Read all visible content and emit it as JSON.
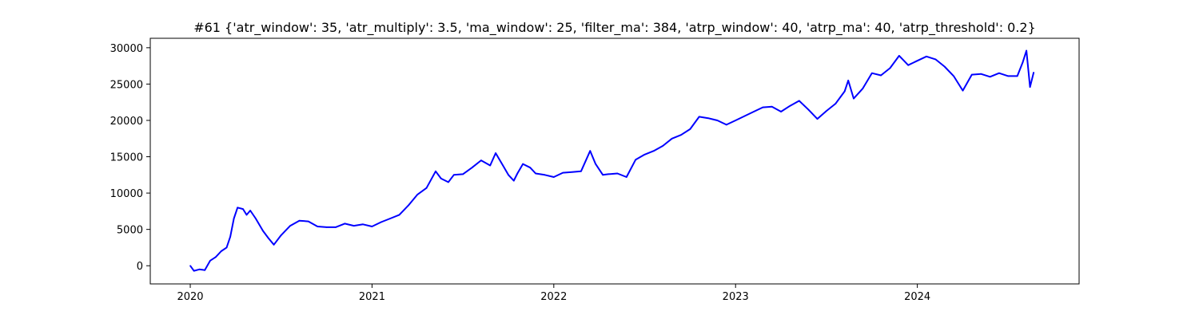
{
  "chart_data": {
    "type": "line",
    "title": "#61 {'atr_window': 35, 'atr_multiply': 3.5, 'ma_window': 25, 'filter_ma': 384, 'atrp_window': 40, 'atrp_ma': 40, 'atrp_threshold': 0.2}",
    "xlabel": "",
    "ylabel": "",
    "xlim": [
      2019.78,
      2024.89
    ],
    "ylim": [
      -2500,
      31300
    ],
    "x_ticks": [
      2020,
      2021,
      2022,
      2023,
      2024
    ],
    "x_tick_labels": [
      "2020",
      "2021",
      "2022",
      "2023",
      "2024"
    ],
    "y_ticks": [
      0,
      5000,
      10000,
      15000,
      20000,
      25000,
      30000
    ],
    "y_tick_labels": [
      "0",
      "5000",
      "10000",
      "15000",
      "20000",
      "25000",
      "30000"
    ],
    "grid": false,
    "series": [
      {
        "color": "#0000ff",
        "x": [
          2020.0,
          2020.02,
          2020.05,
          2020.08,
          2020.11,
          2020.14,
          2020.17,
          2020.2,
          2020.22,
          2020.24,
          2020.26,
          2020.29,
          2020.31,
          2020.33,
          2020.36,
          2020.4,
          2020.43,
          2020.46,
          2020.5,
          2020.55,
          2020.6,
          2020.65,
          2020.7,
          2020.75,
          2020.8,
          2020.85,
          2020.9,
          2020.95,
          2021.0,
          2021.05,
          2021.1,
          2021.15,
          2021.2,
          2021.25,
          2021.3,
          2021.35,
          2021.38,
          2021.42,
          2021.45,
          2021.5,
          2021.55,
          2021.6,
          2021.65,
          2021.68,
          2021.72,
          2021.75,
          2021.78,
          2021.8,
          2021.83,
          2021.87,
          2021.9,
          2021.95,
          2022.0,
          2022.05,
          2022.1,
          2022.15,
          2022.2,
          2022.23,
          2022.27,
          2022.3,
          2022.35,
          2022.4,
          2022.45,
          2022.5,
          2022.55,
          2022.6,
          2022.65,
          2022.7,
          2022.75,
          2022.8,
          2022.85,
          2022.9,
          2022.95,
          2023.0,
          2023.05,
          2023.1,
          2023.15,
          2023.2,
          2023.25,
          2023.3,
          2023.35,
          2023.4,
          2023.45,
          2023.5,
          2023.55,
          2023.6,
          2023.62,
          2023.65,
          2023.7,
          2023.75,
          2023.8,
          2023.85,
          2023.9,
          2023.95,
          2024.0,
          2024.05,
          2024.1,
          2024.15,
          2024.2,
          2024.25,
          2024.3,
          2024.35,
          2024.4,
          2024.45,
          2024.5,
          2024.55,
          2024.58,
          2024.6,
          2024.62,
          2024.64
        ],
        "y": [
          0,
          -700,
          -500,
          -600,
          700,
          1200,
          2000,
          2500,
          4000,
          6500,
          8000,
          7800,
          7000,
          7600,
          6500,
          4800,
          3800,
          2900,
          4200,
          5500,
          6200,
          6100,
          5400,
          5300,
          5300,
          5800,
          5500,
          5700,
          5400,
          6000,
          6500,
          7000,
          8300,
          9800,
          10700,
          13000,
          12000,
          11500,
          12500,
          12600,
          13500,
          14500,
          13800,
          15500,
          13800,
          12500,
          11700,
          12700,
          14000,
          13500,
          12700,
          12500,
          12200,
          12800,
          12900,
          13000,
          15800,
          14000,
          12500,
          12600,
          12700,
          12200,
          14600,
          15300,
          15800,
          16500,
          17500,
          18000,
          18800,
          20500,
          20300,
          20000,
          19400,
          20000,
          20600,
          21200,
          21800,
          21900,
          21200,
          22000,
          22700,
          21500,
          20200,
          21300,
          22300,
          24000,
          25500,
          23000,
          24400,
          26500,
          26200,
          27200,
          28900,
          27600,
          28200,
          28800,
          28400,
          27400,
          26100,
          24100,
          26300,
          26400,
          26000,
          26500,
          26100,
          26100,
          28000,
          29600,
          24600,
          26600
        ]
      }
    ]
  }
}
